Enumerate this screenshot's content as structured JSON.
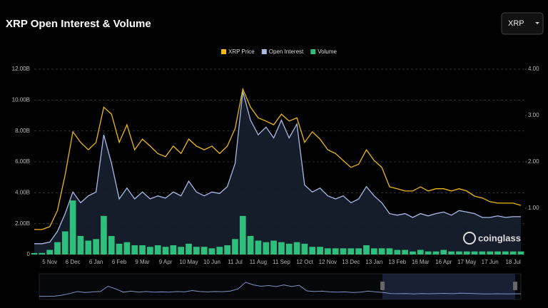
{
  "chart_data": {
    "type": "line",
    "title": "XRP Open Interest & Volume",
    "selector": "XRP",
    "watermark": "coinglass",
    "categories": [
      null,
      null,
      "5 Nov",
      null,
      null,
      "6 Dec",
      null,
      null,
      "6 Jan",
      null,
      null,
      "6 Feb",
      null,
      null,
      "9 Mar",
      null,
      null,
      "9 Apr",
      null,
      null,
      "10 May",
      null,
      null,
      "10 Jun",
      null,
      null,
      "11 Jul",
      null,
      null,
      "11 Aug",
      null,
      null,
      "11 Sep",
      null,
      null,
      "12 Oct",
      null,
      null,
      "12 Nov",
      null,
      null,
      "13 Dec",
      null,
      null,
      "13 Jan",
      null,
      null,
      "13 Feb",
      null,
      null,
      "16 Mar",
      null,
      null,
      "16 Apr",
      null,
      null,
      "17 May",
      null,
      null,
      "17 Jun",
      null,
      null,
      "18 Jul",
      null
    ],
    "series": [
      {
        "name": "XRP Price",
        "color": "#f0b90b",
        "axis": "y2",
        "values": [
          0.54,
          0.54,
          0.6,
          0.95,
          1.72,
          2.65,
          2.42,
          2.26,
          2.42,
          3.18,
          3.03,
          2.42,
          2.8,
          2.26,
          2.49,
          2.34,
          2.18,
          2.11,
          2.34,
          2.18,
          2.49,
          2.34,
          2.26,
          2.34,
          2.18,
          2.34,
          2.72,
          3.57,
          3.18,
          2.95,
          2.88,
          2.8,
          3.03,
          2.88,
          2.95,
          2.42,
          2.65,
          2.49,
          2.26,
          2.18,
          2.03,
          1.88,
          1.95,
          2.26,
          2.03,
          1.88,
          1.46,
          1.42,
          1.37,
          1.37,
          1.46,
          1.37,
          1.42,
          1.42,
          1.37,
          1.42,
          1.37,
          1.26,
          1.22,
          1.14,
          1.11,
          1.11,
          1.11,
          1.06
        ]
      },
      {
        "name": "Open Interest",
        "color": "#a9bbe8",
        "values": [
          0.7,
          0.7,
          0.8,
          1.5,
          2.65,
          4.05,
          3.35,
          3.8,
          4.05,
          7.75,
          5.9,
          3.6,
          4.3,
          3.6,
          4.05,
          3.6,
          3.8,
          3.65,
          4.05,
          3.8,
          4.75,
          4.05,
          3.8,
          4.05,
          3.95,
          4.4,
          5.9,
          10.55,
          8.7,
          7.75,
          8.25,
          7.55,
          8.7,
          7.55,
          8.45,
          4.5,
          4.05,
          4.3,
          3.8,
          3.6,
          3.8,
          3.35,
          3.6,
          4.4,
          3.8,
          3.35,
          2.65,
          2.55,
          2.65,
          2.4,
          2.65,
          2.5,
          2.65,
          2.75,
          2.55,
          2.85,
          2.75,
          2.65,
          2.4,
          2.4,
          2.5,
          2.4,
          2.45,
          2.45
        ]
      },
      {
        "name": "Volume",
        "color": "#2fbf7d",
        "values": [
          0.1,
          0.1,
          0.3,
          0.8,
          1.5,
          3.5,
          1.2,
          0.9,
          1.0,
          2.5,
          1.2,
          0.7,
          0.8,
          0.6,
          0.6,
          0.5,
          0.6,
          0.5,
          0.6,
          0.5,
          0.7,
          0.5,
          0.5,
          0.4,
          0.5,
          0.6,
          1.0,
          2.5,
          1.2,
          0.9,
          0.8,
          0.9,
          0.8,
          0.7,
          0.8,
          0.7,
          0.5,
          0.5,
          0.4,
          0.4,
          0.4,
          0.4,
          0.4,
          0.6,
          0.4,
          0.4,
          0.4,
          0.3,
          0.3,
          0.2,
          0.3,
          0.2,
          0.2,
          0.3,
          0.2,
          0.2,
          0.2,
          0.2,
          0.2,
          0.2,
          0.2,
          0.2,
          0.2,
          0.2
        ]
      }
    ],
    "ylim": [
      0,
      12
    ],
    "yticks": [
      0,
      {
        "value": 2,
        "label": "2.00B"
      },
      {
        "value": 4,
        "label": "4.00B"
      },
      {
        "value": 6,
        "label": "6.00B"
      },
      {
        "value": 8,
        "label": "8.00B"
      },
      {
        "value": 10,
        "label": "10.00B"
      },
      {
        "value": 12,
        "label": "12.00B"
      }
    ],
    "y2lim": [
      0,
      4
    ],
    "y2ticks": [
      {
        "value": 1,
        "label": "1.00"
      },
      {
        "value": 2,
        "label": "2.00"
      },
      {
        "value": 3,
        "label": "3.00"
      },
      {
        "value": 4,
        "label": "4.00"
      }
    ],
    "grid": true,
    "legend": "top"
  }
}
